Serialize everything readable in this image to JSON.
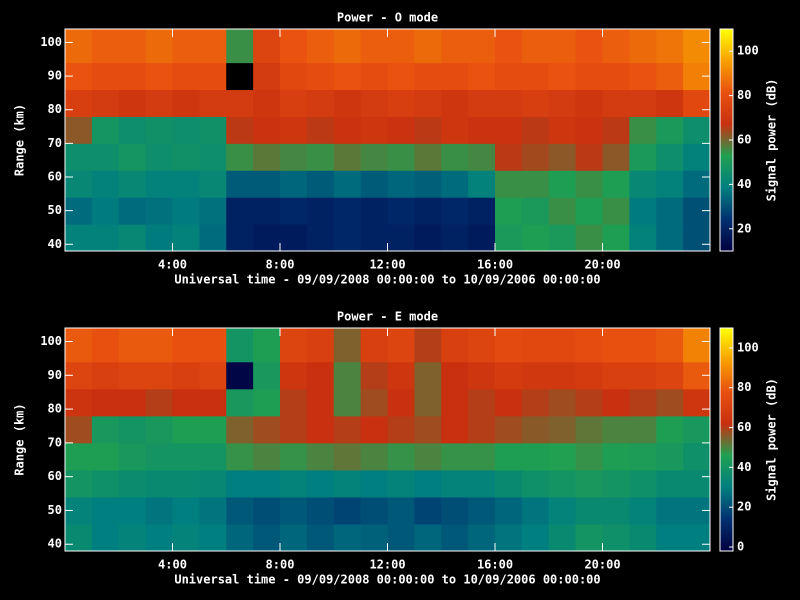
{
  "chart_data": [
    {
      "type": "heatmap",
      "title": "Power - O mode",
      "xlabel": "Universal time - 09/09/2008 00:00:00 to 10/09/2006 00:00:00",
      "ylabel": "Range (km)",
      "colorbar_label": "Signal power (dB)",
      "xlim": [
        0,
        24
      ],
      "xticks": [
        {
          "value": 4,
          "label": "4:00"
        },
        {
          "value": 8,
          "label": "8:00"
        },
        {
          "value": 12,
          "label": "12:00"
        },
        {
          "value": 16,
          "label": "16:00"
        },
        {
          "value": 20,
          "label": "20:00"
        }
      ],
      "ylim": [
        38,
        104
      ],
      "yticks": [
        40,
        50,
        60,
        70,
        80,
        90,
        100
      ],
      "xbins": [
        0,
        1,
        2,
        3,
        4,
        5,
        6,
        7,
        8,
        9,
        10,
        11,
        12,
        13,
        14,
        15,
        16,
        17,
        18,
        19,
        20,
        21,
        22,
        23,
        24
      ],
      "ybins": [
        38,
        46,
        54,
        62,
        70,
        78,
        86,
        94,
        104
      ],
      "zlim": [
        10,
        110
      ],
      "zticks": [
        20,
        40,
        60,
        80,
        100
      ],
      "colormap": [
        "#000040",
        "#003070",
        "#007f80",
        "#20a050",
        "#c83010",
        "#e85010",
        "#f8a000",
        "#ffff00"
      ],
      "z": [
        [
          40,
          40,
          42,
          38,
          40,
          35,
          20,
          18,
          18,
          20,
          22,
          20,
          20,
          18,
          20,
          18,
          50,
          52,
          50,
          55,
          52,
          40,
          35,
          30
        ],
        [
          35,
          38,
          35,
          36,
          38,
          36,
          20,
          20,
          22,
          20,
          22,
          20,
          22,
          20,
          22,
          20,
          52,
          50,
          55,
          52,
          55,
          38,
          35,
          30
        ],
        [
          42,
          40,
          42,
          40,
          40,
          42,
          32,
          32,
          34,
          32,
          35,
          32,
          34,
          33,
          35,
          40,
          55,
          55,
          52,
          55,
          52,
          42,
          40,
          35
        ],
        [
          45,
          45,
          48,
          45,
          46,
          45,
          55,
          58,
          56,
          55,
          58,
          56,
          55,
          58,
          55,
          56,
          66,
          64,
          62,
          66,
          62,
          50,
          45,
          40
        ],
        [
          62,
          48,
          45,
          46,
          45,
          46,
          66,
          68,
          70,
          66,
          68,
          70,
          68,
          66,
          70,
          68,
          68,
          66,
          70,
          68,
          66,
          55,
          50,
          45
        ],
        [
          74,
          72,
          70,
          72,
          70,
          72,
          72,
          70,
          74,
          72,
          70,
          72,
          74,
          72,
          70,
          72,
          72,
          74,
          72,
          70,
          72,
          72,
          70,
          78
        ],
        [
          82,
          80,
          80,
          82,
          80,
          80,
          0,
          72,
          78,
          80,
          82,
          80,
          82,
          80,
          80,
          82,
          80,
          80,
          82,
          80,
          80,
          82,
          84,
          90
        ],
        [
          86,
          84,
          84,
          86,
          84,
          84,
          55,
          76,
          82,
          84,
          86,
          84,
          84,
          86,
          84,
          84,
          82,
          84,
          84,
          82,
          84,
          86,
          88,
          92
        ]
      ]
    },
    {
      "type": "heatmap",
      "title": "Power - E mode",
      "xlabel": "Universal time - 09/09/2008 00:00:00 to 10/09/2006 00:00:00",
      "ylabel": "Range (km)",
      "colorbar_label": "Signal power (dB)",
      "xlim": [
        0,
        24
      ],
      "xticks": [
        {
          "value": 4,
          "label": "4:00"
        },
        {
          "value": 8,
          "label": "8:00"
        },
        {
          "value": 12,
          "label": "12:00"
        },
        {
          "value": 16,
          "label": "16:00"
        },
        {
          "value": 20,
          "label": "20:00"
        }
      ],
      "ylim": [
        38,
        104
      ],
      "yticks": [
        40,
        50,
        60,
        70,
        80,
        90,
        100
      ],
      "xbins": [
        0,
        1,
        2,
        3,
        4,
        5,
        6,
        7,
        8,
        9,
        10,
        11,
        12,
        13,
        14,
        15,
        16,
        17,
        18,
        19,
        20,
        21,
        22,
        23,
        24
      ],
      "ybins": [
        38,
        46,
        54,
        62,
        70,
        78,
        86,
        94,
        104
      ],
      "zlim": [
        -2,
        110
      ],
      "zticks": [
        0,
        20,
        40,
        60,
        80,
        100
      ],
      "colormap": [
        "#000040",
        "#003070",
        "#007f80",
        "#20a050",
        "#c83010",
        "#e85010",
        "#f8a000",
        "#ffff00"
      ],
      "z": [
        [
          35,
          30,
          32,
          30,
          32,
          30,
          25,
          22,
          25,
          22,
          25,
          24,
          22,
          25,
          22,
          25,
          28,
          30,
          35,
          40,
          38,
          35,
          30,
          30
        ],
        [
          32,
          30,
          30,
          28,
          30,
          28,
          22,
          20,
          22,
          20,
          18,
          20,
          22,
          18,
          20,
          22,
          25,
          28,
          32,
          35,
          35,
          32,
          28,
          28
        ],
        [
          40,
          38,
          36,
          35,
          35,
          34,
          30,
          30,
          32,
          30,
          32,
          30,
          32,
          30,
          32,
          32,
          35,
          38,
          40,
          42,
          40,
          38,
          35,
          35
        ],
        [
          45,
          45,
          42,
          40,
          40,
          40,
          48,
          50,
          48,
          50,
          52,
          50,
          48,
          50,
          48,
          48,
          45,
          45,
          46,
          48,
          45,
          44,
          42,
          38
        ],
        [
          58,
          42,
          40,
          42,
          45,
          45,
          55,
          58,
          60,
          62,
          60,
          62,
          60,
          58,
          62,
          60,
          58,
          56,
          55,
          52,
          50,
          50,
          45,
          42
        ],
        [
          64,
          62,
          62,
          60,
          62,
          62,
          42,
          45,
          60,
          62,
          50,
          58,
          62,
          55,
          62,
          60,
          62,
          60,
          58,
          60,
          62,
          60,
          58,
          65
        ],
        [
          72,
          70,
          72,
          72,
          70,
          72,
          0,
          42,
          65,
          62,
          50,
          60,
          65,
          55,
          62,
          65,
          68,
          66,
          66,
          68,
          70,
          70,
          72,
          80
        ],
        [
          80,
          78,
          80,
          80,
          78,
          78,
          40,
          45,
          72,
          70,
          55,
          70,
          72,
          60,
          70,
          72,
          75,
          74,
          74,
          76,
          78,
          78,
          80,
          88
        ]
      ]
    }
  ]
}
